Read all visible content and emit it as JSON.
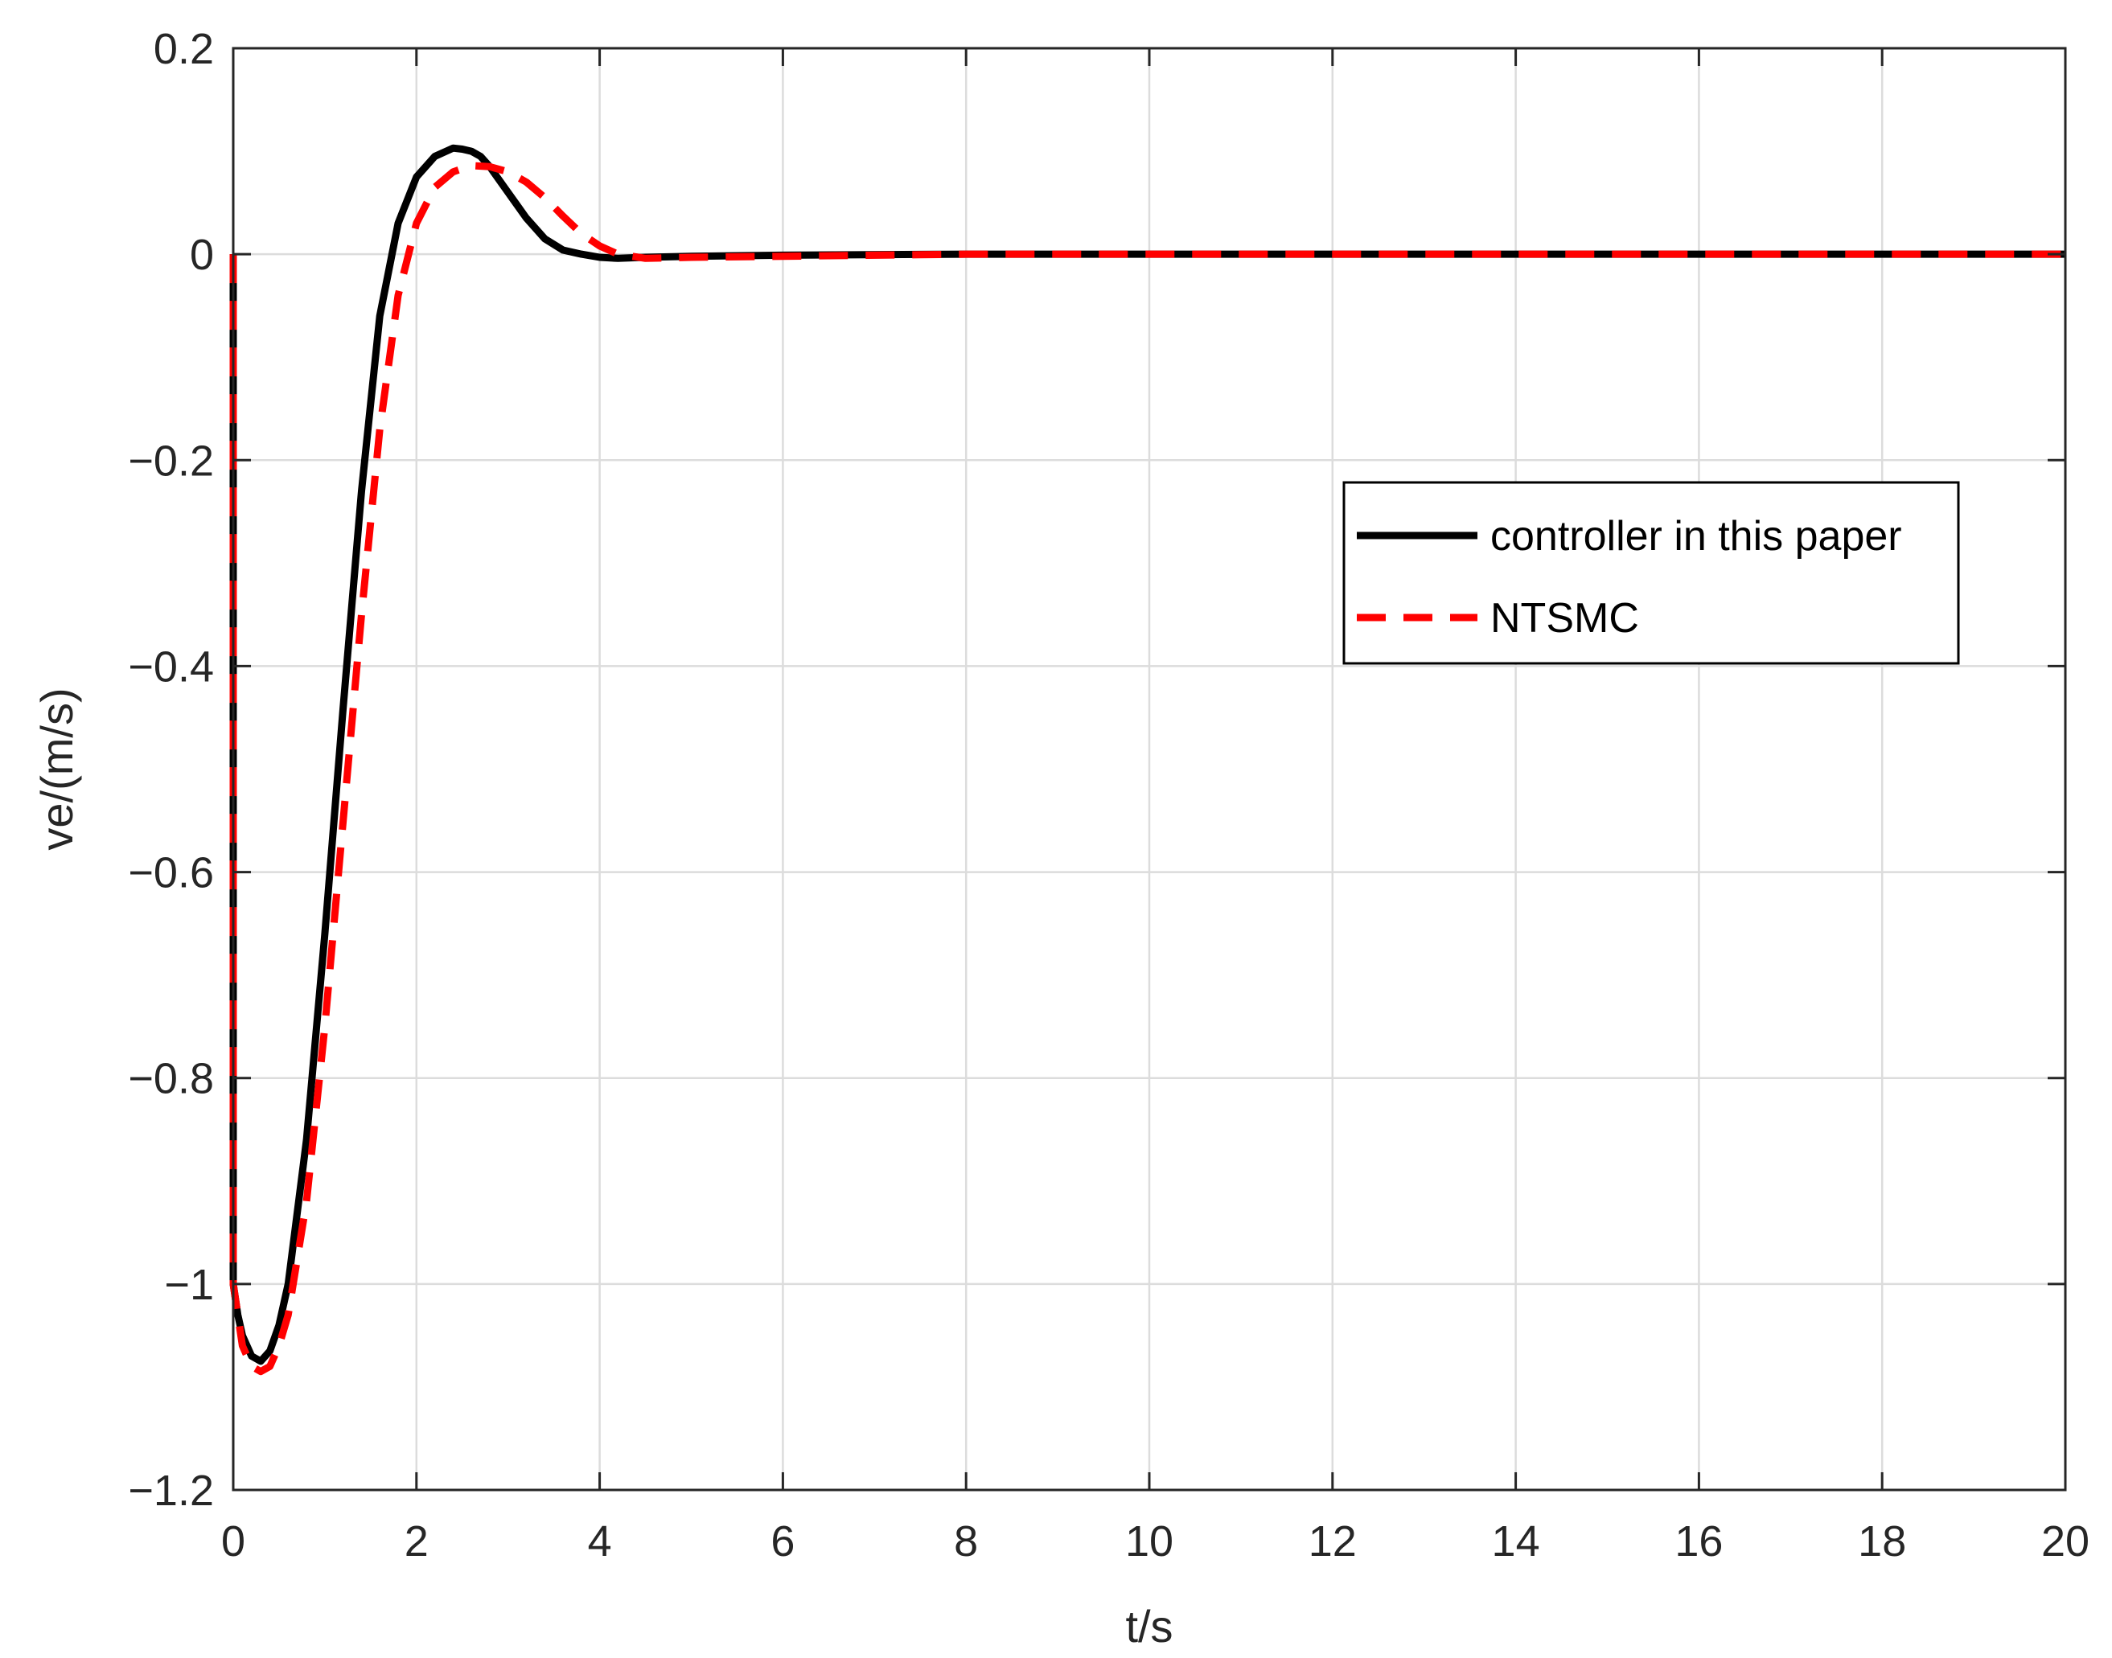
{
  "chart_data": {
    "type": "line",
    "title": "",
    "xlabel": "t/s",
    "ylabel": "ve/(m/s)",
    "xlim": [
      0,
      20
    ],
    "ylim": [
      -1.2,
      0.2
    ],
    "xticks": [
      0,
      2,
      4,
      6,
      8,
      10,
      12,
      14,
      16,
      18,
      20
    ],
    "yticks": [
      0.2,
      0,
      -0.2,
      -0.4,
      -0.6,
      -0.8,
      -1,
      -1.2
    ],
    "xtick_labels": [
      "0",
      "2",
      "4",
      "6",
      "8",
      "10",
      "12",
      "14",
      "16",
      "18",
      "20"
    ],
    "ytick_labels": [
      "0.2",
      "0",
      "−0.2",
      "−0.4",
      "−0.6",
      "−0.8",
      "−1",
      "−1.2"
    ],
    "grid": true,
    "legend_position": "right-middle",
    "series": [
      {
        "name": "controller in this paper",
        "color": "#000000",
        "style": "solid",
        "x": [
          0,
          0,
          0.05,
          0.1,
          0.2,
          0.3,
          0.4,
          0.5,
          0.6,
          0.8,
          1.0,
          1.2,
          1.4,
          1.6,
          1.8,
          2.0,
          2.2,
          2.4,
          2.5,
          2.6,
          2.7,
          2.8,
          3.0,
          3.2,
          3.4,
          3.6,
          3.8,
          4.0,
          4.2,
          4.5,
          5.0,
          6.0,
          8.0,
          10.0,
          12.0,
          14.0,
          16.0,
          18.0,
          20.0
        ],
        "y": [
          0,
          -1.0,
          -1.03,
          -1.05,
          -1.07,
          -1.075,
          -1.065,
          -1.04,
          -1.0,
          -0.86,
          -0.66,
          -0.44,
          -0.23,
          -0.06,
          0.03,
          0.075,
          0.095,
          0.103,
          0.102,
          0.1,
          0.095,
          0.085,
          0.06,
          0.035,
          0.015,
          0.004,
          0.0,
          -0.003,
          -0.004,
          -0.003,
          -0.002,
          -0.001,
          0.0,
          0.0,
          0.0,
          0.0,
          0.0,
          0.0,
          0.0
        ]
      },
      {
        "name": "NTSMC",
        "color": "#ff0000",
        "style": "dashed",
        "x": [
          0,
          0,
          0.05,
          0.1,
          0.2,
          0.3,
          0.4,
          0.5,
          0.6,
          0.8,
          1.0,
          1.2,
          1.4,
          1.6,
          1.8,
          2.0,
          2.2,
          2.4,
          2.6,
          2.8,
          3.0,
          3.2,
          3.4,
          3.6,
          3.8,
          4.0,
          4.2,
          4.5,
          5.0,
          6.0,
          8.0,
          10.0,
          12.0,
          14.0,
          16.0,
          18.0,
          20.0
        ],
        "y": [
          0,
          -1.0,
          -1.03,
          -1.06,
          -1.08,
          -1.085,
          -1.08,
          -1.06,
          -1.03,
          -0.92,
          -0.75,
          -0.55,
          -0.35,
          -0.17,
          -0.04,
          0.03,
          0.065,
          0.08,
          0.086,
          0.085,
          0.08,
          0.07,
          0.055,
          0.037,
          0.02,
          0.008,
          0.0,
          -0.004,
          -0.003,
          -0.002,
          0.0,
          0.0,
          0.0,
          0.0,
          0.0,
          0.0,
          0.0
        ]
      }
    ]
  }
}
